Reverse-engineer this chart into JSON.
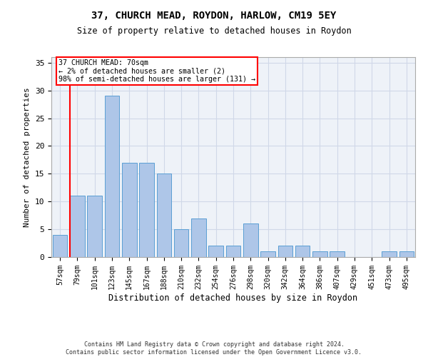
{
  "title": "37, CHURCH MEAD, ROYDON, HARLOW, CM19 5EY",
  "subtitle": "Size of property relative to detached houses in Roydon",
  "xlabel": "Distribution of detached houses by size in Roydon",
  "ylabel": "Number of detached properties",
  "categories": [
    "57sqm",
    "79sqm",
    "101sqm",
    "123sqm",
    "145sqm",
    "167sqm",
    "188sqm",
    "210sqm",
    "232sqm",
    "254sqm",
    "276sqm",
    "298sqm",
    "320sqm",
    "342sqm",
    "364sqm",
    "386sqm",
    "407sqm",
    "429sqm",
    "451sqm",
    "473sqm",
    "495sqm"
  ],
  "values": [
    4,
    11,
    11,
    29,
    17,
    17,
    15,
    5,
    7,
    2,
    2,
    6,
    1,
    2,
    2,
    1,
    1,
    0,
    0,
    1,
    1
  ],
  "bar_color": "#aec6e8",
  "bar_edge_color": "#5a9fd4",
  "annotation_text": "37 CHURCH MEAD: 70sqm\n← 2% of detached houses are smaller (2)\n98% of semi-detached houses are larger (131) →",
  "vline_x": 0.575,
  "ylim": [
    0,
    36
  ],
  "yticks": [
    0,
    5,
    10,
    15,
    20,
    25,
    30,
    35
  ],
  "grid_color": "#d0d8e8",
  "background_color": "#eef2f8",
  "footer_line1": "Contains HM Land Registry data © Crown copyright and database right 2024.",
  "footer_line2": "Contains public sector information licensed under the Open Government Licence v3.0."
}
